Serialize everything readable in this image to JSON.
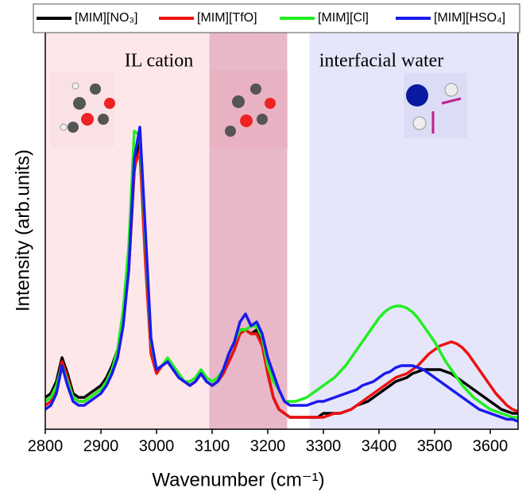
{
  "chart_data": {
    "type": "line",
    "x_label": "Wavenumber (cm⁻¹)",
    "y_label": "Intensity (arb.units)",
    "annotations": [
      "IL cation",
      "interfacial water"
    ],
    "xlim": [
      2800,
      3650
    ],
    "xticks": [
      2800,
      2900,
      3000,
      3100,
      3200,
      3300,
      3400,
      3500,
      3600
    ],
    "ylim": [
      0,
      100
    ],
    "regions": [
      {
        "x0": 2800,
        "x1": 3095,
        "color": "#fde7e9"
      },
      {
        "x0": 3095,
        "x1": 3235,
        "color": "#e8b8c8"
      },
      {
        "x0": 3275,
        "x1": 3650,
        "color": "#e6e6fb"
      }
    ],
    "x": [
      2800,
      2810,
      2820,
      2830,
      2840,
      2850,
      2860,
      2870,
      2880,
      2890,
      2900,
      2910,
      2920,
      2930,
      2940,
      2950,
      2960,
      2970,
      2980,
      2990,
      3000,
      3010,
      3020,
      3030,
      3040,
      3050,
      3060,
      3070,
      3080,
      3090,
      3100,
      3110,
      3120,
      3130,
      3140,
      3150,
      3160,
      3170,
      3180,
      3190,
      3200,
      3210,
      3220,
      3230,
      3240,
      3250,
      3260,
      3270,
      3280,
      3290,
      3300,
      3310,
      3320,
      3330,
      3340,
      3350,
      3360,
      3370,
      3380,
      3390,
      3400,
      3410,
      3420,
      3430,
      3440,
      3450,
      3460,
      3470,
      3480,
      3490,
      3500,
      3510,
      3520,
      3530,
      3540,
      3550,
      3560,
      3570,
      3580,
      3590,
      3600,
      3610,
      3620,
      3630,
      3640,
      3650
    ],
    "series": [
      {
        "name": "[MIM][NO₃]",
        "color": "#000000",
        "values": [
          8,
          9,
          12,
          18,
          14,
          9,
          8,
          8,
          9,
          10,
          11,
          13,
          16,
          20,
          27,
          40,
          65,
          74,
          45,
          20,
          15,
          16,
          17,
          15,
          13,
          12,
          11,
          12,
          14,
          12,
          11,
          12,
          14,
          17,
          20,
          25,
          25,
          24,
          25,
          22,
          14,
          8,
          5,
          4,
          3,
          3,
          3,
          3,
          3,
          3,
          4,
          4,
          4,
          4,
          4.5,
          5,
          6,
          6.5,
          7,
          8,
          9,
          10,
          11,
          12,
          12.5,
          13,
          14,
          14.5,
          15,
          15,
          15,
          15,
          14.5,
          14,
          13,
          12,
          11,
          10,
          9,
          8,
          7,
          6,
          5,
          4.5,
          4,
          4
        ]
      },
      {
        "name": "[MIM][TfO]",
        "color": "#ee1111",
        "values": [
          6,
          7,
          10,
          17,
          13,
          8,
          7,
          7,
          8,
          9,
          10,
          12,
          15,
          19,
          27,
          40,
          66,
          70,
          42,
          19,
          14,
          16,
          17,
          15,
          13,
          12,
          11,
          12,
          14,
          12,
          11,
          12,
          14,
          17,
          20,
          24,
          25,
          24,
          24,
          21,
          14,
          8,
          5,
          4,
          3,
          3,
          3,
          3,
          3,
          3,
          3,
          3.5,
          4,
          4,
          4.5,
          5,
          6,
          7,
          8,
          9,
          10,
          11,
          12,
          13,
          13.5,
          14,
          15,
          16,
          17.5,
          19,
          20,
          21,
          21.5,
          22,
          21.5,
          20.5,
          19,
          17,
          15,
          13,
          11,
          9,
          7.5,
          6,
          5,
          4.5
        ]
      },
      {
        "name": "[MIM][Cl]",
        "color": "#22ee22",
        "values": [
          7,
          8,
          11,
          16,
          12,
          8,
          7,
          7,
          8,
          9,
          10,
          12,
          15,
          20,
          30,
          46,
          75,
          74,
          48,
          22,
          15,
          16,
          18,
          16,
          14,
          12,
          12,
          13,
          15,
          13,
          12,
          13,
          15,
          19,
          22,
          25,
          25,
          26,
          26,
          23,
          16,
          12,
          10,
          7,
          7,
          7,
          7.5,
          8,
          9,
          10,
          11,
          12,
          13,
          14.5,
          16,
          18,
          20,
          22,
          24,
          26,
          28,
          29.5,
          30.5,
          31,
          31,
          30.5,
          29.5,
          28,
          26,
          24,
          22,
          19.5,
          17,
          15,
          13,
          11,
          9.5,
          8,
          7,
          6,
          5,
          4.5,
          4,
          3.5,
          3,
          3
        ]
      },
      {
        "name": "[MIM][HSO₄]",
        "color": "#1a1aee",
        "values": [
          5,
          6,
          9,
          16,
          11,
          7,
          6,
          6,
          7,
          8,
          9,
          11,
          14,
          18,
          26,
          40,
          68,
          76,
          50,
          23,
          15,
          16,
          17,
          15,
          13,
          12,
          11,
          12,
          14,
          12,
          11,
          12,
          15,
          19,
          22,
          27,
          29,
          26,
          27,
          24,
          18,
          14,
          10,
          7,
          6,
          6,
          6,
          6,
          6.5,
          7,
          7,
          7.5,
          8,
          8.5,
          9,
          9.5,
          10,
          11,
          11.5,
          12,
          13,
          14,
          14.5,
          15.5,
          16,
          16,
          16,
          15.5,
          15,
          14,
          13,
          12,
          11,
          10,
          9,
          8,
          7,
          6,
          5,
          4.5,
          4,
          3.5,
          3,
          2.5,
          2.5,
          2
        ]
      }
    ]
  }
}
